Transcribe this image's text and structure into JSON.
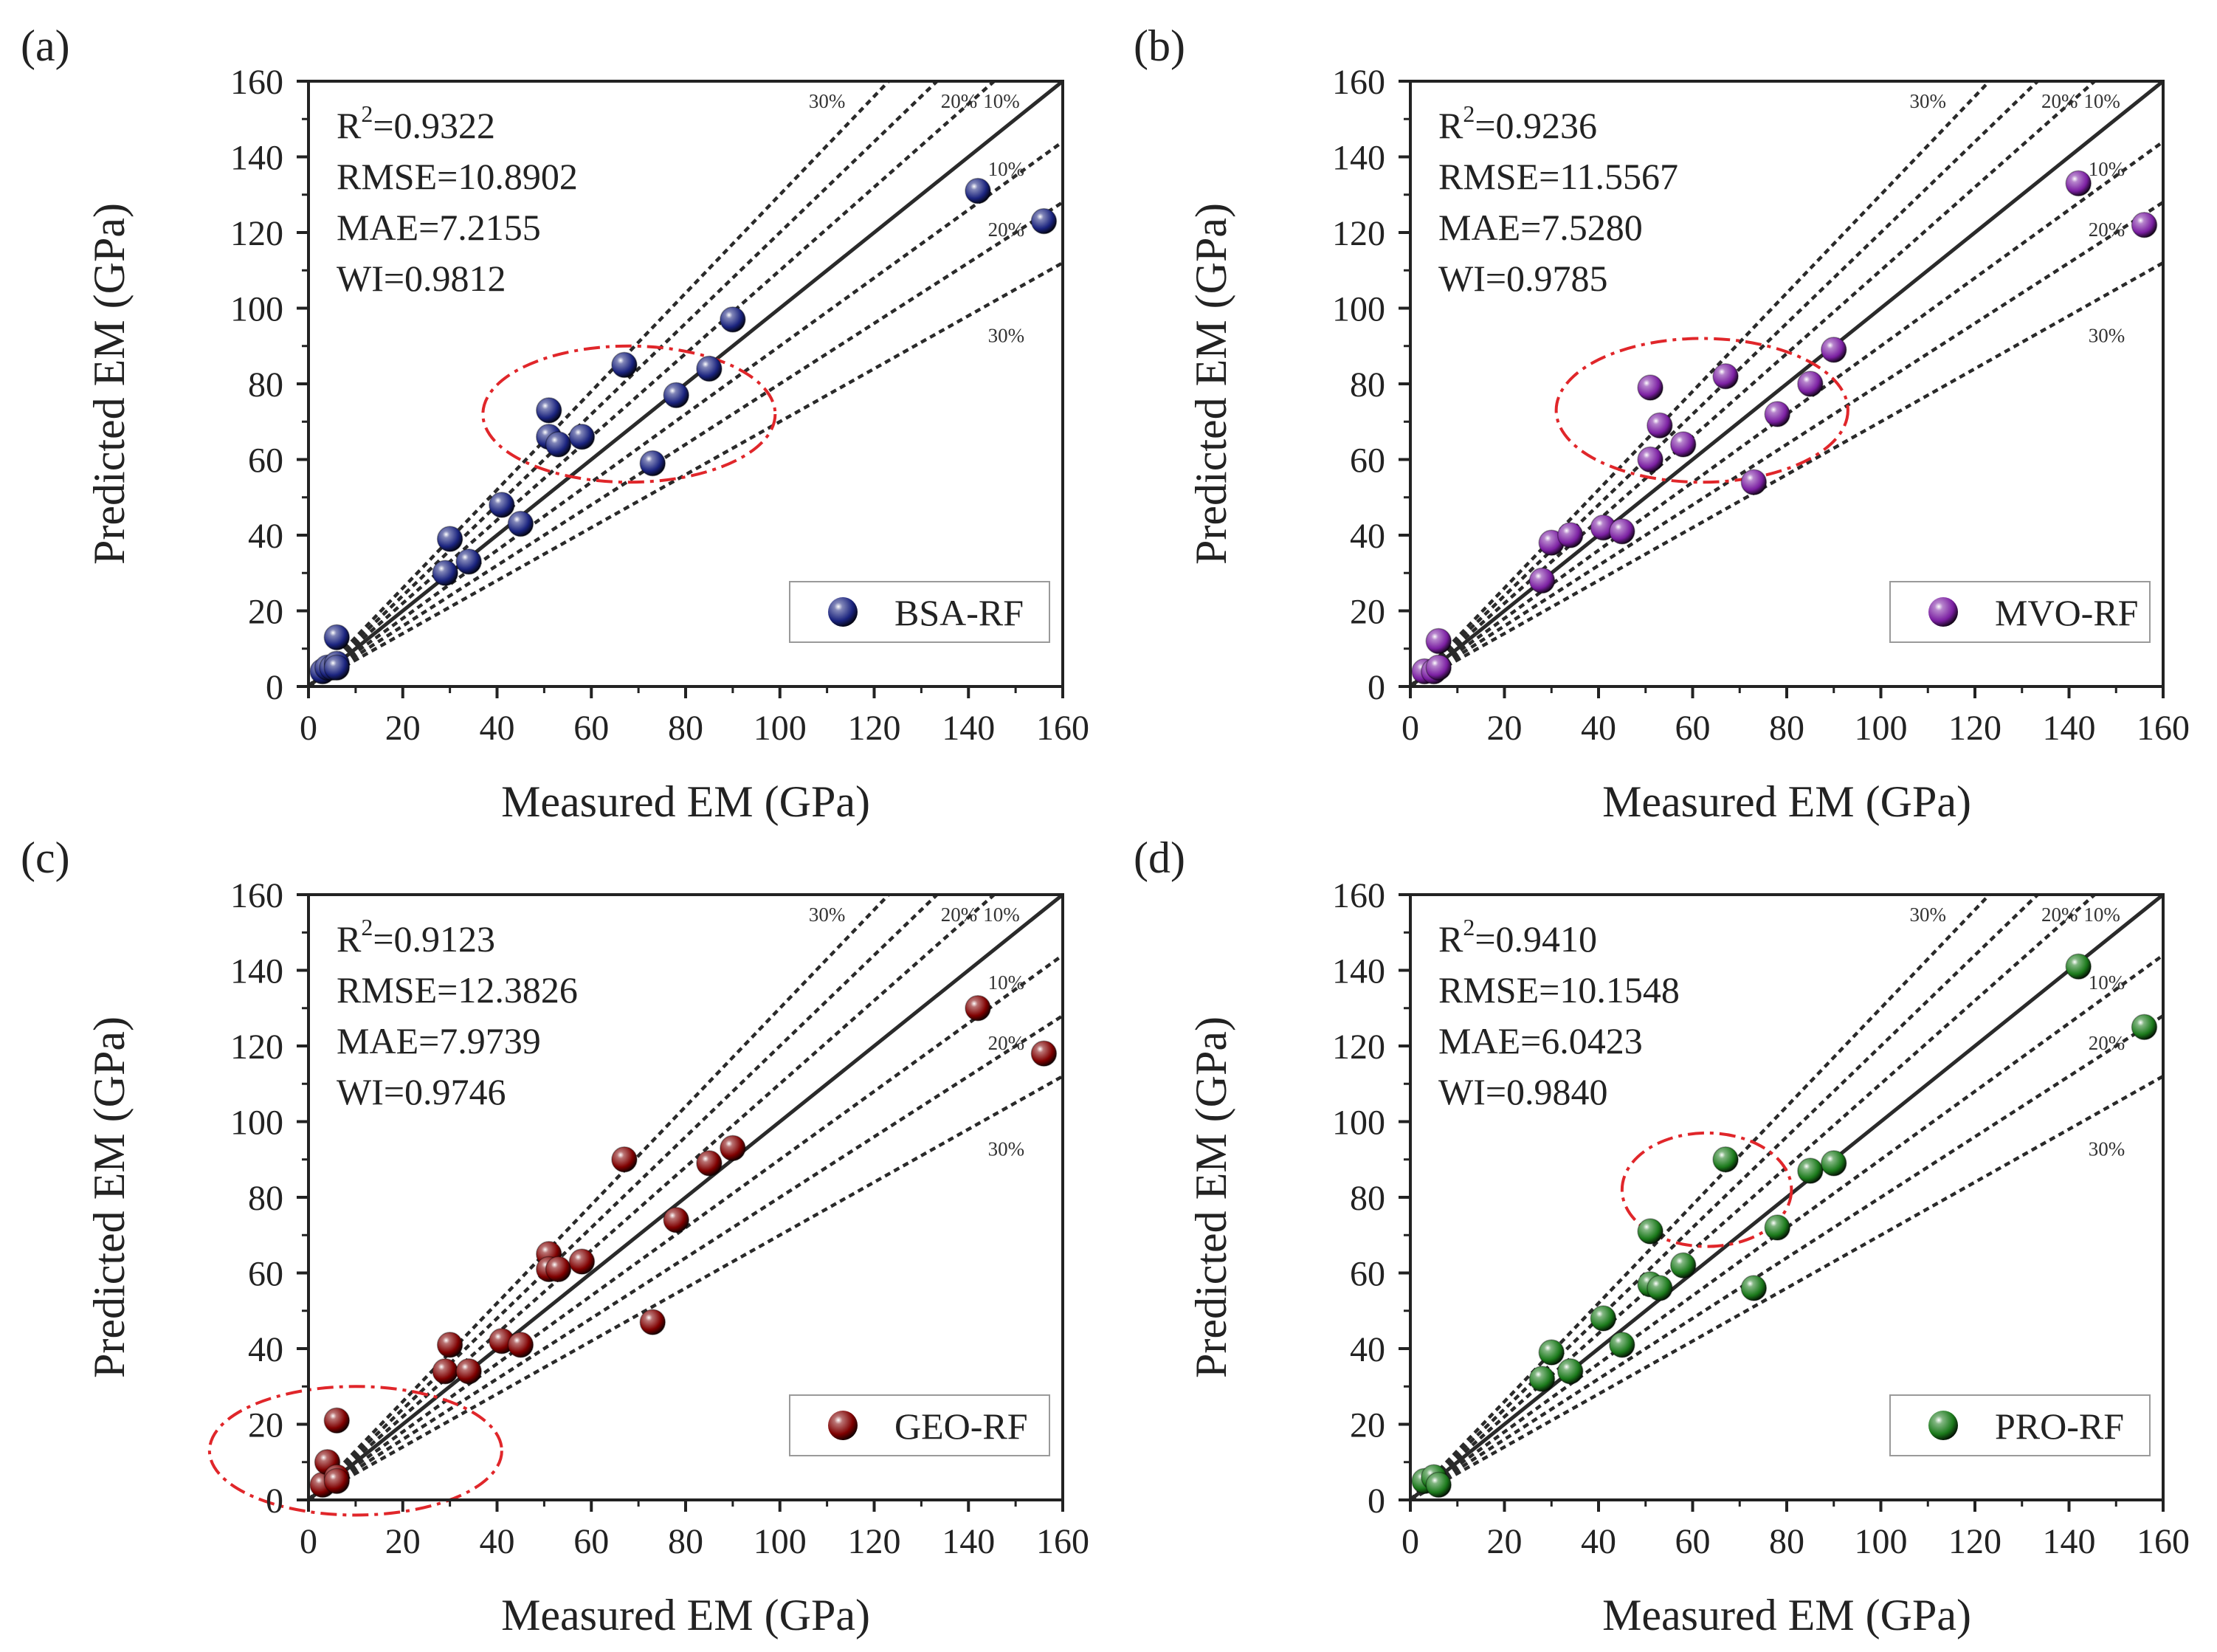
{
  "chart_data": [
    {
      "panel_label": "(a)",
      "type": "scatter",
      "xlabel": "Measured EM (GPa)",
      "ylabel": "Predicted EM (GPa)",
      "xlim": [
        0,
        160
      ],
      "ylim": [
        0,
        160
      ],
      "ticks": [
        "0",
        "20",
        "40",
        "60",
        "80",
        "100",
        "120",
        "140",
        "160"
      ],
      "stats": {
        "r2_prefix": "R",
        "r2_sup": "2",
        "r2_value": "=0.9322",
        "rmse": "RMSE=10.8902",
        "mae": "MAE=7.2155",
        "wi": "WI=0.9812"
      },
      "legend": "BSA-RF",
      "marker_color": "#1a237e",
      "pct_labels": {
        "upper30": "30%",
        "upper20": "20%",
        "upper10": "10%",
        "lower10": "10%",
        "lower20": "20%",
        "lower30": "30%"
      },
      "highlight": {
        "cx": 68,
        "cy": 72,
        "rx": 31,
        "ry": 18
      },
      "points": [
        [
          3,
          4
        ],
        [
          4,
          5
        ],
        [
          5,
          5
        ],
        [
          6,
          6
        ],
        [
          6,
          5
        ],
        [
          6,
          13
        ],
        [
          29,
          30
        ],
        [
          30,
          39
        ],
        [
          34,
          33
        ],
        [
          41,
          48
        ],
        [
          45,
          43
        ],
        [
          51,
          73
        ],
        [
          51,
          66
        ],
        [
          53,
          64
        ],
        [
          58,
          66
        ],
        [
          67,
          85
        ],
        [
          73,
          59
        ],
        [
          78,
          77
        ],
        [
          85,
          84
        ],
        [
          90,
          97
        ],
        [
          142,
          131
        ],
        [
          156,
          123
        ]
      ]
    },
    {
      "panel_label": "(b)",
      "type": "scatter",
      "xlabel": "Measured EM (GPa)",
      "ylabel": "Predicted EM (GPa)",
      "xlim": [
        0,
        160
      ],
      "ylim": [
        0,
        160
      ],
      "ticks": [
        "0",
        "20",
        "40",
        "60",
        "80",
        "100",
        "120",
        "140",
        "160"
      ],
      "stats": {
        "r2_prefix": "R",
        "r2_sup": "2",
        "r2_value": "=0.9236",
        "rmse": "RMSE=11.5567",
        "mae": "MAE=7.5280",
        "wi": "WI=0.9785"
      },
      "legend": "MVO-RF",
      "marker_color": "#7b1fa2",
      "pct_labels": {
        "upper30": "30%",
        "upper20": "20%",
        "upper10": "10%",
        "lower10": "10%",
        "lower20": "20%",
        "lower30": "30%"
      },
      "highlight": {
        "cx": 62,
        "cy": 73,
        "rx": 31,
        "ry": 19
      },
      "points": [
        [
          3,
          4
        ],
        [
          5,
          4
        ],
        [
          6,
          12
        ],
        [
          6,
          5
        ],
        [
          28,
          28
        ],
        [
          30,
          38
        ],
        [
          34,
          40
        ],
        [
          41,
          42
        ],
        [
          45,
          41
        ],
        [
          51,
          79
        ],
        [
          51,
          60
        ],
        [
          53,
          69
        ],
        [
          58,
          64
        ],
        [
          67,
          82
        ],
        [
          73,
          54
        ],
        [
          78,
          72
        ],
        [
          85,
          80
        ],
        [
          90,
          89
        ],
        [
          142,
          133
        ],
        [
          156,
          122
        ]
      ]
    },
    {
      "panel_label": "(c)",
      "type": "scatter",
      "xlabel": "Measured EM (GPa)",
      "ylabel": "Predicted EM (GPa)",
      "xlim": [
        0,
        160
      ],
      "ylim": [
        0,
        160
      ],
      "ticks": [
        "0",
        "20",
        "40",
        "60",
        "80",
        "100",
        "120",
        "140",
        "160"
      ],
      "stats": {
        "r2_prefix": "R",
        "r2_sup": "2",
        "r2_value": "=0.9123",
        "rmse": "RMSE=12.3826",
        "mae": "MAE=7.9739",
        "wi": "WI=0.9746"
      },
      "legend": "GEO-RF",
      "marker_color": "#7f0000",
      "pct_labels": {
        "upper30": "30%",
        "upper20": "20%",
        "upper10": "10%",
        "lower10": "10%",
        "lower20": "20%",
        "lower30": "30%"
      },
      "highlight": {
        "cx": 10,
        "cy": 13,
        "rx": 31,
        "ry": 17
      },
      "points": [
        [
          3,
          4
        ],
        [
          4,
          10
        ],
        [
          6,
          21
        ],
        [
          6,
          6
        ],
        [
          6,
          5
        ],
        [
          29,
          34
        ],
        [
          30,
          41
        ],
        [
          34,
          34
        ],
        [
          41,
          42
        ],
        [
          45,
          41
        ],
        [
          51,
          65
        ],
        [
          51,
          61
        ],
        [
          53,
          61
        ],
        [
          58,
          63
        ],
        [
          67,
          90
        ],
        [
          73,
          47
        ],
        [
          78,
          74
        ],
        [
          85,
          89
        ],
        [
          90,
          93
        ],
        [
          142,
          130
        ],
        [
          156,
          118
        ]
      ]
    },
    {
      "panel_label": "(d)",
      "type": "scatter",
      "xlabel": "Measured EM (GPa)",
      "ylabel": "Predicted EM (GPa)",
      "xlim": [
        0,
        160
      ],
      "ylim": [
        0,
        160
      ],
      "ticks": [
        "0",
        "20",
        "40",
        "60",
        "80",
        "100",
        "120",
        "140",
        "160"
      ],
      "stats": {
        "r2_prefix": "R",
        "r2_sup": "2",
        "r2_value": "=0.9410",
        "rmse": "RMSE=10.1548",
        "mae": "MAE=6.0423",
        "wi": "WI=0.9840"
      },
      "legend": "PRO-RF",
      "marker_color": "#1b7a1b",
      "pct_labels": {
        "upper30": "30%",
        "upper20": "20%",
        "upper10": "10%",
        "lower10": "10%",
        "lower20": "20%",
        "lower30": "30%"
      },
      "highlight": {
        "cx": 63,
        "cy": 82,
        "rx": 18,
        "ry": 15
      },
      "points": [
        [
          3,
          5
        ],
        [
          5,
          6
        ],
        [
          6,
          4
        ],
        [
          28,
          32
        ],
        [
          30,
          39
        ],
        [
          34,
          34
        ],
        [
          41,
          48
        ],
        [
          45,
          41
        ],
        [
          51,
          71
        ],
        [
          51,
          57
        ],
        [
          53,
          56
        ],
        [
          58,
          62
        ],
        [
          67,
          90
        ],
        [
          73,
          56
        ],
        [
          78,
          72
        ],
        [
          85,
          87
        ],
        [
          90,
          89
        ],
        [
          142,
          141
        ],
        [
          156,
          125
        ]
      ]
    }
  ]
}
